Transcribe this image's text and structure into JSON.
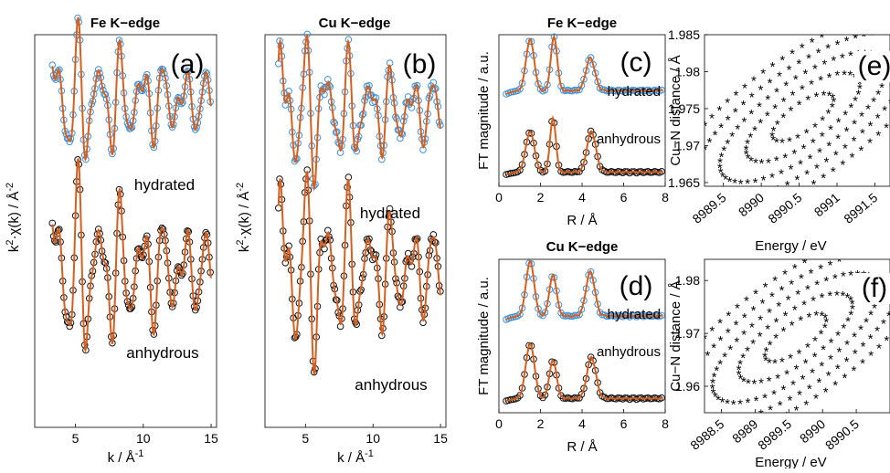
{
  "chart_data": [
    {
      "id": "a",
      "type": "line",
      "title": "Fe K−edge",
      "panel_label": "(a)",
      "xlabel": "k / Å",
      "xlabel_sup": "-1",
      "ylabel_pre": "k",
      "ylabel_sup": "2",
      "ylabel_post": "·χ(k) / Å",
      "ylabel_sup2": "-2",
      "xlim": [
        2,
        15.4
      ],
      "xticks": [
        5,
        10,
        15
      ],
      "ylim": [
        -3.6,
        2.4
      ],
      "series": [
        {
          "role": "hydrated-data",
          "color": "#3b8fd3",
          "marker": "circle",
          "offset": 1.4,
          "k": [
            3.3,
            15.0
          ],
          "amp": 0.85
        },
        {
          "role": "hydrated-fit",
          "color": "#d45f1f",
          "offset": 1.4,
          "k": [
            3.3,
            15.0
          ],
          "amp": 0.85
        },
        {
          "role": "anhydrous-data",
          "color": "#111111",
          "marker": "circle",
          "offset": -1.2,
          "k": [
            3.3,
            15.0
          ],
          "amp": 1.15
        },
        {
          "role": "anhydrous-fit",
          "color": "#d45f1f",
          "offset": -1.2,
          "k": [
            3.3,
            15.0
          ],
          "amp": 1.15
        }
      ],
      "annotations": [
        "hydrated",
        "anhydrous"
      ]
    },
    {
      "id": "b",
      "type": "line",
      "title": "Cu K−edge",
      "panel_label": "(b)",
      "xlabel": "k / Å",
      "xlabel_sup": "-1",
      "ylabel_pre": "k",
      "ylabel_sup": "2",
      "ylabel_post": "·χ(k) / Å",
      "ylabel_sup2": "-2",
      "xlim": [
        2,
        15.4
      ],
      "xticks": [
        5,
        10,
        15
      ],
      "ylim": [
        -3.6,
        2.4
      ],
      "series": [
        {
          "role": "hydrated-data",
          "color": "#3b8fd3",
          "marker": "circle",
          "offset": 1.25,
          "k": [
            3.0,
            15.0
          ],
          "amp": 0.9
        },
        {
          "role": "hydrated-fit",
          "color": "#d45f1f",
          "offset": 1.25,
          "k": [
            3.0,
            15.0
          ],
          "amp": 0.9
        },
        {
          "role": "anhydrous-data",
          "color": "#111111",
          "marker": "circle",
          "offset": -1.2,
          "k": [
            3.0,
            15.0
          ],
          "amp": 1.2
        },
        {
          "role": "anhydrous-fit",
          "color": "#d45f1f",
          "offset": -1.2,
          "k": [
            3.0,
            15.0
          ],
          "amp": 1.2
        }
      ],
      "annotations": [
        "hydrated",
        "anhydrous"
      ]
    },
    {
      "id": "c",
      "type": "line",
      "title": "Fe K−edge",
      "panel_label": "(c)",
      "xlabel": "R / Å",
      "ylabel": "FT magnitude / a.u.",
      "xlim": [
        0,
        8
      ],
      "xticks": [
        0,
        2,
        4,
        6,
        8
      ],
      "series": [
        {
          "role": "hydrated-data",
          "color": "#3b8fd3",
          "marker": "circle",
          "peaks": [
            [
              1.5,
              0.95,
              0.28
            ],
            [
              2.65,
              1.0,
              0.22
            ],
            [
              4.4,
              0.6,
              0.3
            ]
          ],
          "base": 0.05
        },
        {
          "role": "hydrated-fit",
          "color": "#d45f1f",
          "peaks": [
            [
              1.5,
              0.95,
              0.28
            ],
            [
              2.65,
              1.0,
              0.22
            ],
            [
              4.4,
              0.6,
              0.3
            ]
          ],
          "base": 0.05
        },
        {
          "role": "anhydrous-data",
          "color": "#111111",
          "marker": "circle",
          "peaks": [
            [
              1.5,
              0.75,
              0.3
            ],
            [
              2.6,
              1.0,
              0.2
            ],
            [
              4.45,
              0.75,
              0.3
            ]
          ],
          "base": 0.03
        },
        {
          "role": "anhydrous-fit",
          "color": "#d45f1f",
          "peaks": [
            [
              1.5,
              0.75,
              0.3
            ],
            [
              2.6,
              1.0,
              0.2
            ],
            [
              4.45,
              0.75,
              0.3
            ]
          ],
          "base": 0.03
        }
      ],
      "annotations": [
        "hydrated",
        "anhydrous"
      ]
    },
    {
      "id": "d",
      "type": "line",
      "title": "Cu K−edge",
      "panel_label": "(d)",
      "xlabel": "R / Å",
      "ylabel": "FT magnitude / a.u.",
      "xlim": [
        0,
        8
      ],
      "xticks": [
        0,
        2,
        4,
        6,
        8
      ],
      "series": [
        {
          "role": "hydrated-data",
          "color": "#3b8fd3",
          "marker": "circle",
          "peaks": [
            [
              1.5,
              1.0,
              0.28
            ],
            [
              2.6,
              0.75,
              0.25
            ],
            [
              4.4,
              0.8,
              0.3
            ]
          ],
          "base": 0.05
        },
        {
          "role": "hydrated-fit",
          "color": "#d45f1f",
          "peaks": [
            [
              1.5,
              1.0,
              0.28
            ],
            [
              2.6,
              0.75,
              0.25
            ],
            [
              4.4,
              0.8,
              0.3
            ]
          ],
          "base": 0.05
        },
        {
          "role": "anhydrous-data",
          "color": "#111111",
          "marker": "circle",
          "peaks": [
            [
              1.5,
              1.0,
              0.3
            ],
            [
              2.6,
              0.7,
              0.25
            ],
            [
              4.45,
              0.75,
              0.3
            ]
          ],
          "base": 0.03
        },
        {
          "role": "anhydrous-fit",
          "color": "#d45f1f",
          "peaks": [
            [
              1.5,
              1.0,
              0.3
            ],
            [
              2.6,
              0.7,
              0.25
            ],
            [
              4.45,
              0.75,
              0.3
            ]
          ],
          "base": 0.03
        }
      ],
      "annotations": [
        "hydrated",
        "anhydrous"
      ]
    },
    {
      "id": "e",
      "type": "scatter",
      "panel_label": "(e)",
      "xlabel": "Energy / eV",
      "ylabel": "Cu−N distance / Å",
      "xlim": [
        8989.25,
        8991.7
      ],
      "ylim": [
        1.9645,
        1.985
      ],
      "xticks": [
        8989.5,
        8990,
        8990.5,
        8991,
        8991.5
      ],
      "xticklabels": [
        "8989.5",
        "8990",
        "8990.5",
        "8991",
        "8991.5"
      ],
      "yticks": [
        1.965,
        1.97,
        1.975,
        1.98,
        1.985
      ],
      "yticklabels": [
        "1.965",
        "1.97",
        "1.975",
        "1.98",
        "1.985"
      ],
      "contour_center": [
        8990.55,
        1.9737
      ],
      "marker": "asterisk"
    },
    {
      "id": "f",
      "type": "scatter",
      "panel_label": "(f)",
      "xlabel": "Energy / eV",
      "ylabel": "Cu−N distance / Å",
      "xlim": [
        8988.25,
        8991.0
      ],
      "ylim": [
        1.955,
        1.984
      ],
      "xticks": [
        8988.5,
        8989,
        8989.5,
        8990,
        8990.5
      ],
      "xticklabels": [
        "8988.5",
        "8989",
        "8989.5",
        "8990",
        "8990.5"
      ],
      "yticks": [
        1.96,
        1.97,
        1.98
      ],
      "yticklabels": [
        "1.96",
        "1.97",
        "1.98"
      ],
      "contour_center": [
        8989.6,
        1.969
      ],
      "marker": "asterisk"
    }
  ]
}
